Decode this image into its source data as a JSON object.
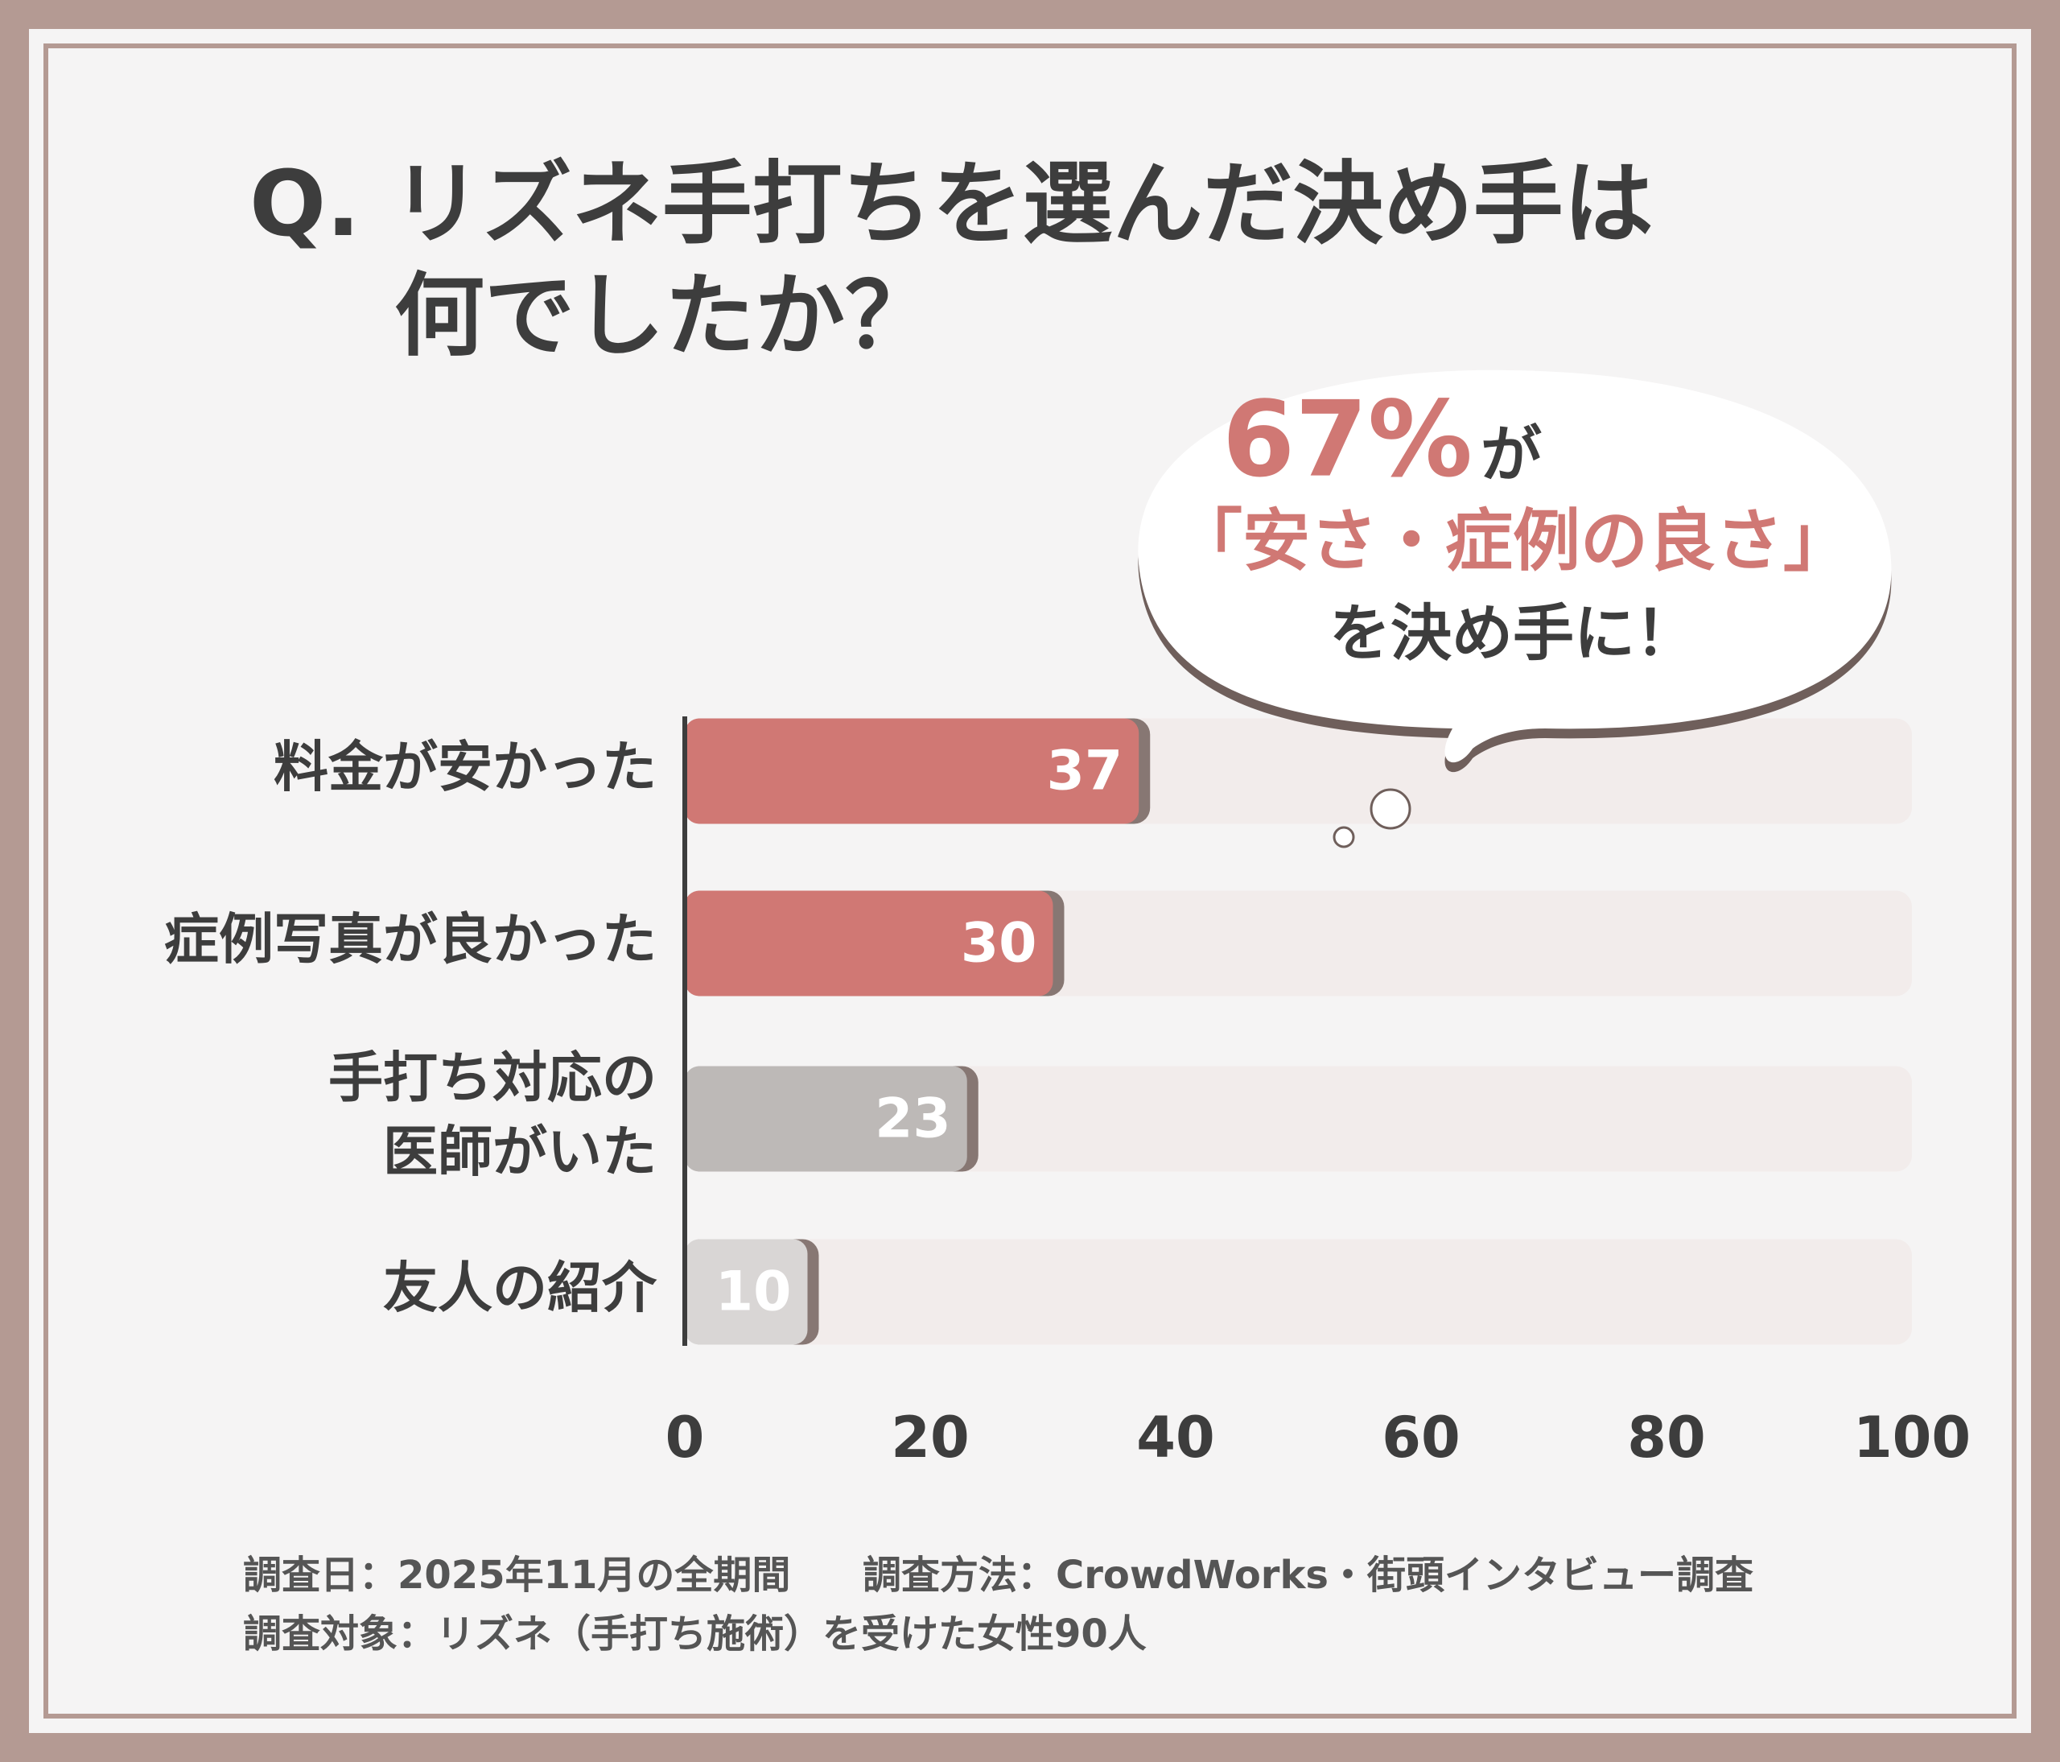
{
  "chart_data": {
    "type": "hbar",
    "title_lines": [
      "Q. リズネ手打ちを選んだ決め手は",
      "何でしたか？"
    ],
    "categories": [
      [
        "料金が安かった"
      ],
      [
        "症例写真が良かった"
      ],
      [
        "手打ち対応の",
        "医師がいた"
      ],
      [
        "友人の紹介"
      ]
    ],
    "values": [
      37,
      30,
      23,
      10
    ],
    "colors": [
      "#d07874",
      "#d07874",
      "#bdb9b7",
      "#d9d6d5"
    ],
    "xlim": [
      0,
      100
    ],
    "xticks": [
      0,
      20,
      40,
      60,
      80,
      100
    ],
    "callout": {
      "highlight": "67%",
      "suffix": "が",
      "line2": "「安さ・症例の良さ」",
      "line3": "を決め手に！"
    },
    "footnotes": [
      "調査日：2025年11月の全期間",
      "調査方法：CrowdWorks・街頭インタビュー調査",
      "調査対象：リズネ（手打ち施術）を受けた女性90人"
    ]
  }
}
